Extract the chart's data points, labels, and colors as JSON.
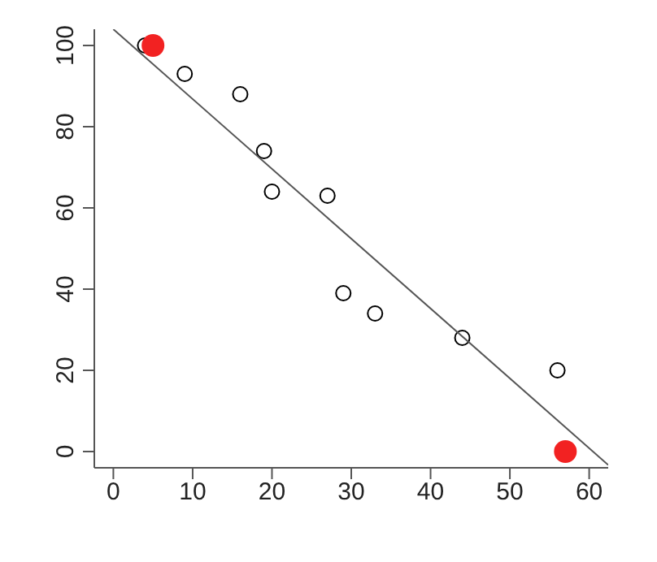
{
  "chart_data": {
    "type": "scatter",
    "marker": "circle",
    "xlim": [
      -2.4,
      62.4
    ],
    "ylim": [
      -4,
      104
    ],
    "xticks": [
      0,
      10,
      20,
      30,
      40,
      50,
      60
    ],
    "yticks": [
      0,
      20,
      40,
      60,
      80,
      100
    ],
    "series": [
      {
        "color": "#000000",
        "x": [
          4,
          9,
          16,
          19,
          20,
          27,
          29,
          33,
          44,
          56
        ],
        "values": [
          100,
          93,
          88,
          74,
          64,
          63,
          39,
          34,
          28,
          20
        ]
      },
      {
        "color": "#f22222",
        "marker": "circle",
        "x": [
          5,
          57
        ],
        "values": [
          100,
          0
        ]
      },
      {
        "type": "line",
        "color": "#555555",
        "marker": "none",
        "x": [
          0,
          62.4
        ],
        "values": [
          104,
          -3.3
        ]
      }
    ]
  }
}
